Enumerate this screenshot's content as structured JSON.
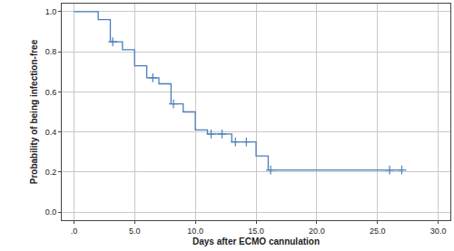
{
  "chart_data": {
    "type": "line",
    "x_label": "Days after ECMO cannulation",
    "y_label": "Probability of being infection-free",
    "xlim": [
      -1,
      31
    ],
    "ylim": [
      -0.04,
      1.04
    ],
    "xticks": [
      {
        "value": 0,
        "label": ".0"
      },
      {
        "value": 5,
        "label": "5.0"
      },
      {
        "value": 10,
        "label": "10.0"
      },
      {
        "value": 15,
        "label": "15.0"
      },
      {
        "value": 20,
        "label": "20.0"
      },
      {
        "value": 25,
        "label": "25.0"
      },
      {
        "value": 30,
        "label": "30.0"
      }
    ],
    "yticks": [
      {
        "value": 0,
        "label": "0.0"
      },
      0.2,
      0.4,
      0.6,
      0.8,
      {
        "value": 1,
        "label": "1.0"
      }
    ],
    "grid": true,
    "series": [
      {
        "type": "line",
        "line_style": "step",
        "color": "#4a7ebb",
        "x": [
          0,
          2,
          3,
          4,
          5,
          6,
          7,
          8,
          9,
          10,
          11,
          13,
          15,
          16,
          27
        ],
        "values": [
          1,
          0.96,
          0.85,
          0.81,
          0.73,
          0.67,
          0.64,
          0.54,
          0.5,
          0.41,
          0.39,
          0.35,
          0.28,
          0.21,
          0.21
        ]
      },
      {
        "type": "scatter",
        "marker": "cross",
        "color": "#4a7ebb",
        "x": [
          3.2,
          6.5,
          8.2,
          11.3,
          12.2,
          13.3,
          14.2,
          16.2,
          26,
          27
        ],
        "values": [
          0.85,
          0.67,
          0.54,
          0.39,
          0.39,
          0.35,
          0.35,
          0.21,
          0.21,
          0.21
        ]
      }
    ]
  }
}
